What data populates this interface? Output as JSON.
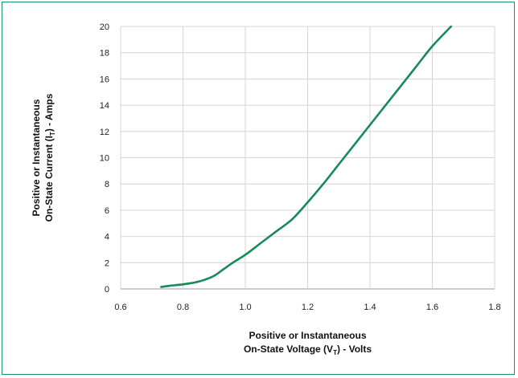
{
  "frame_color": "#1b9463",
  "chart_data": {
    "type": "line",
    "xlabel": {
      "prefix": "Positive or Instantaneous",
      "main": "On-State Voltage (V",
      "sub": "T",
      "suffix": ") - Volts"
    },
    "ylabel": {
      "prefix": "Positive or Instantaneous",
      "main": "On-State Current (I",
      "sub": "T",
      "suffix": ") - Amps"
    },
    "xlim": [
      0.6,
      1.8
    ],
    "ylim": [
      0,
      20
    ],
    "x_ticks": [
      0.6,
      0.8,
      1.0,
      1.2,
      1.4,
      1.6,
      1.8
    ],
    "x_tick_labels": [
      "0.6",
      "0.8",
      "1.0",
      "1.2",
      "1.4",
      "1.6",
      "1.8"
    ],
    "y_ticks": [
      0,
      2,
      4,
      6,
      8,
      10,
      12,
      14,
      16,
      18,
      20
    ],
    "y_tick_labels": [
      "0",
      "2",
      "4",
      "6",
      "8",
      "10",
      "12",
      "14",
      "16",
      "18",
      "20"
    ],
    "grid": true,
    "series": [
      {
        "color": "#178a58",
        "x": [
          0.73,
          0.76,
          0.8,
          0.84,
          0.87,
          0.9,
          0.93,
          0.96,
          1.0,
          1.05,
          1.1,
          1.15,
          1.2,
          1.25,
          1.3,
          1.35,
          1.4,
          1.45,
          1.5,
          1.55,
          1.6,
          1.66
        ],
        "y": [
          0.15,
          0.25,
          0.35,
          0.5,
          0.7,
          1.0,
          1.5,
          2.0,
          2.6,
          3.5,
          4.4,
          5.3,
          6.6,
          8.0,
          9.5,
          11.0,
          12.5,
          14.0,
          15.5,
          17.0,
          18.5,
          20.0
        ]
      }
    ]
  }
}
